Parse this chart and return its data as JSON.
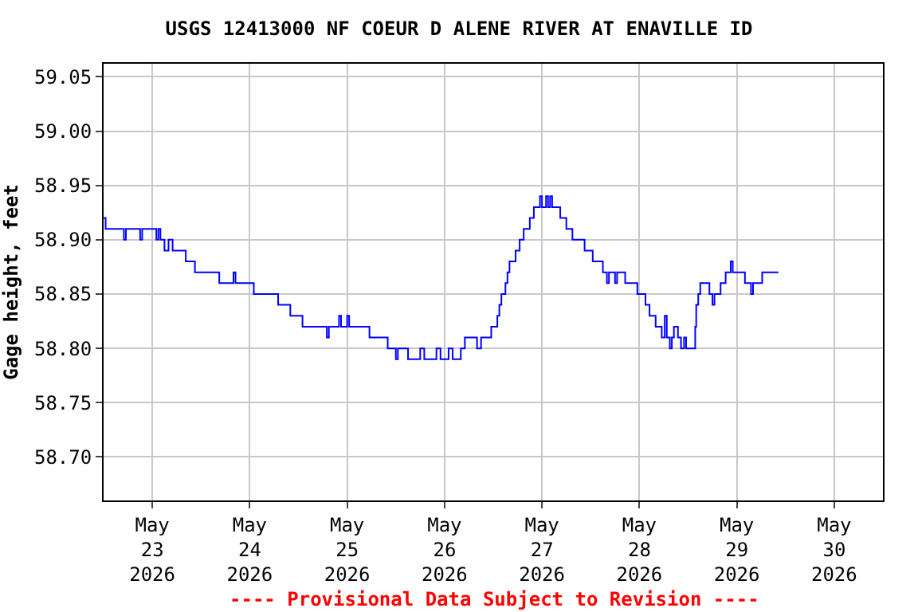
{
  "chart_data": {
    "type": "step",
    "title": "USGS 12413000 NF COEUR D ALENE RIVER AT ENAVILLE ID",
    "ylabel": "Gage height, feet",
    "annotations": [
      "---- Provisional Data Subject to Revision ----"
    ],
    "x": [
      "2026-05-22T12:00",
      "2026-05-22T12:30",
      "2026-05-22T17:00",
      "2026-05-22T17:30",
      "2026-05-22T21:00",
      "2026-05-22T21:30",
      "2026-05-23T01:00",
      "2026-05-23T01:30",
      "2026-05-23T02:00",
      "2026-05-23T03:00",
      "2026-05-23T04:00",
      "2026-05-23T05:00",
      "2026-05-23T08:15",
      "2026-05-23T10:30",
      "2026-05-23T16:30",
      "2026-05-23T20:00",
      "2026-05-23T20:30",
      "2026-05-24T01:00",
      "2026-05-24T07:00",
      "2026-05-24T10:00",
      "2026-05-24T13:00",
      "2026-05-24T19:00",
      "2026-05-24T19:30",
      "2026-05-24T22:00",
      "2026-05-24T22:30",
      "2026-05-25T00:00",
      "2026-05-25T00:30",
      "2026-05-25T05:30",
      "2026-05-25T10:00",
      "2026-05-25T12:00",
      "2026-05-25T12:30",
      "2026-05-25T15:00",
      "2026-05-25T18:00",
      "2026-05-25T19:00",
      "2026-05-25T22:00",
      "2026-05-25T23:00",
      "2026-05-26T01:00",
      "2026-05-26T02:00",
      "2026-05-26T04:00",
      "2026-05-26T05:00",
      "2026-05-26T08:00",
      "2026-05-26T09:00",
      "2026-05-26T11:00",
      "2026-05-26T11:30",
      "2026-05-26T13:00",
      "2026-05-26T13:30",
      "2026-05-26T14:00",
      "2026-05-26T15:00",
      "2026-05-26T15:30",
      "2026-05-26T16:00",
      "2026-05-26T17:30",
      "2026-05-26T18:30",
      "2026-05-26T19:30",
      "2026-05-26T21:00",
      "2026-05-26T22:00",
      "2026-05-26T23:30",
      "2026-05-27T00:00",
      "2026-05-27T01:00",
      "2026-05-27T01:30",
      "2026-05-27T02:00",
      "2026-05-27T02:30",
      "2026-05-27T04:30",
      "2026-05-27T06:00",
      "2026-05-27T07:30",
      "2026-05-27T10:30",
      "2026-05-27T12:30",
      "2026-05-27T15:00",
      "2026-05-27T16:00",
      "2026-05-27T16:30",
      "2026-05-27T18:00",
      "2026-05-27T18:30",
      "2026-05-27T20:30",
      "2026-05-27T23:30",
      "2026-05-28T01:30",
      "2026-05-28T02:30",
      "2026-05-28T04:00",
      "2026-05-28T05:30",
      "2026-05-28T06:15",
      "2026-05-28T06:45",
      "2026-05-28T07:30",
      "2026-05-28T08:00",
      "2026-05-28T08:30",
      "2026-05-28T09:30",
      "2026-05-28T10:15",
      "2026-05-28T11:00",
      "2026-05-28T11:30",
      "2026-05-28T13:45",
      "2026-05-28T14:00",
      "2026-05-28T14:30",
      "2026-05-28T15:00",
      "2026-05-28T17:15",
      "2026-05-28T18:00",
      "2026-05-28T18:30",
      "2026-05-28T20:00",
      "2026-05-28T21:15",
      "2026-05-28T22:30",
      "2026-05-28T23:00",
      "2026-05-29T02:00",
      "2026-05-29T03:30",
      "2026-05-29T04:00",
      "2026-05-29T06:15",
      "2026-05-29T10:15"
    ],
    "series": [
      {
        "color": "#0000ff",
        "values": [
          58.92,
          58.91,
          58.9,
          58.91,
          58.9,
          58.91,
          58.9,
          58.91,
          58.9,
          58.89,
          58.9,
          58.89,
          58.88,
          58.87,
          58.86,
          58.87,
          58.86,
          58.85,
          58.84,
          58.83,
          58.82,
          58.81,
          58.82,
          58.83,
          58.82,
          58.83,
          58.82,
          58.81,
          58.8,
          58.79,
          58.8,
          58.79,
          58.8,
          58.79,
          58.8,
          58.79,
          58.8,
          58.79,
          58.8,
          58.81,
          58.8,
          58.81,
          58.81,
          58.82,
          58.83,
          58.84,
          58.85,
          58.86,
          58.87,
          58.88,
          58.89,
          58.9,
          58.91,
          58.92,
          58.93,
          58.94,
          58.93,
          58.94,
          58.93,
          58.94,
          58.93,
          58.92,
          58.91,
          58.9,
          58.89,
          58.88,
          58.87,
          58.86,
          58.87,
          58.86,
          58.87,
          58.86,
          58.85,
          58.84,
          58.83,
          58.82,
          58.81,
          58.83,
          58.81,
          58.8,
          58.81,
          58.82,
          58.81,
          58.8,
          58.81,
          58.8,
          58.82,
          58.84,
          58.85,
          58.86,
          58.85,
          58.84,
          58.85,
          58.86,
          58.87,
          58.88,
          58.87,
          58.86,
          58.85,
          58.86,
          58.87,
          58.87
        ]
      }
    ],
    "xlim": [
      "2026-05-22T12:00",
      "2026-05-30T12:00"
    ],
    "xticks": [
      {
        "value": "2026-05-23",
        "label": "May\n23\n2026"
      },
      {
        "value": "2026-05-24",
        "label": "May\n24\n2026"
      },
      {
        "value": "2026-05-25",
        "label": "May\n25\n2026"
      },
      {
        "value": "2026-05-26",
        "label": "May\n26\n2026"
      },
      {
        "value": "2026-05-27",
        "label": "May\n27\n2026"
      },
      {
        "value": "2026-05-28",
        "label": "May\n28\n2026"
      },
      {
        "value": "2026-05-29",
        "label": "May\n29\n2026"
      },
      {
        "value": "2026-05-30",
        "label": "May\n30\n2026"
      }
    ],
    "ylim": [
      58.66,
      59.062
    ],
    "yticks": [
      {
        "value": 58.7,
        "label": "58.70"
      },
      {
        "value": 58.75,
        "label": "58.75"
      },
      {
        "value": 58.8,
        "label": "58.80"
      },
      {
        "value": 58.85,
        "label": "58.85"
      },
      {
        "value": 58.9,
        "label": "58.90"
      },
      {
        "value": 58.95,
        "label": "58.95"
      },
      {
        "value": 59.0,
        "label": "59.00"
      },
      {
        "value": 59.05,
        "label": "59.05"
      }
    ],
    "grid": true,
    "marker": "none",
    "line_style": "solid"
  }
}
